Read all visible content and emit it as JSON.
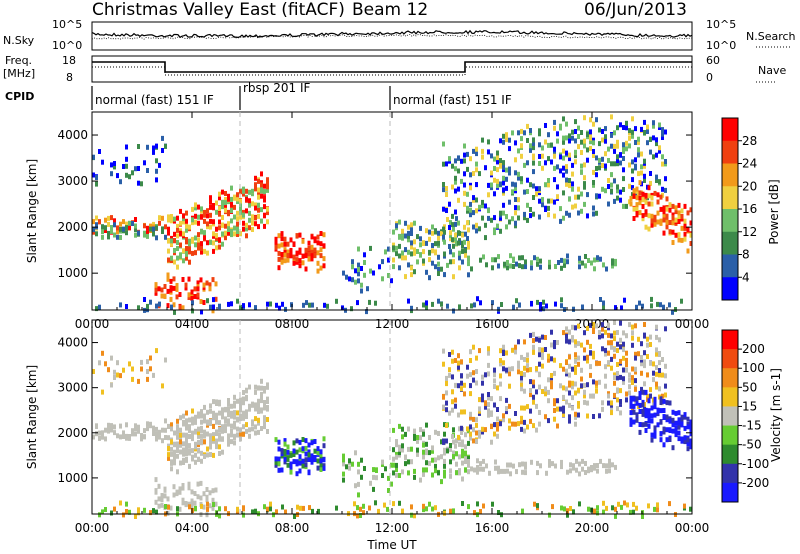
{
  "header": {
    "title": "Christmas Valley East (fitACF)",
    "beam": "Beam 12",
    "date": "06/Jun/2013"
  },
  "top_panels": {
    "nsky_label": "N.Sky",
    "nsky_ticks": [
      "10^5",
      "10^0"
    ],
    "nsearch_label": "N.Search",
    "nsearch_ticks": [
      "10^5",
      "10^0"
    ],
    "freq_label_1": "Freq.",
    "freq_label_2": "[MHz]",
    "freq_ticks": [
      "18",
      "8"
    ],
    "nave_label": "Nave",
    "nave_ticks": [
      "60",
      "0"
    ],
    "cpid_label": "CPID",
    "cpid_segments": [
      "normal (fast) 151 IF",
      "rbsp 201 IF",
      "normal (fast) 151 IF"
    ]
  },
  "colors": {
    "power": [
      "#0000ff",
      "#2a5fa8",
      "#3c8a4a",
      "#6fbf6a",
      "#f0d040",
      "#f29a1a",
      "#f04010",
      "#ff0000"
    ],
    "velocity": [
      "#1a1aff",
      "#3333aa",
      "#2e8b2e",
      "#66cc33",
      "#c0c0b8",
      "#f0c020",
      "#f08c1a",
      "#f04b10",
      "#ff0000"
    ],
    "ground_scatter": "#c0c0b8"
  },
  "chart_data": [
    {
      "type": "heatmap",
      "quantity": "Power",
      "ylabel": "Slant Range [km]",
      "yticks": [
        1000,
        2000,
        3000,
        4000
      ],
      "ylim": [
        200,
        4500
      ],
      "xticks": [
        "00:00",
        "04:00",
        "08:00",
        "12:00",
        "16:00",
        "20:00",
        "00:00"
      ],
      "xlim_hours": [
        0,
        24
      ],
      "colorbar_label": "Power [dB]",
      "colorbar_ticks": [
        "28",
        "24",
        "20",
        "16",
        "12",
        "8",
        "4"
      ]
    },
    {
      "type": "heatmap",
      "quantity": "Velocity",
      "ylabel": "Slant Range [km]",
      "yticks": [
        1000,
        2000,
        3000,
        4000
      ],
      "ylim": [
        200,
        4500
      ],
      "xticks": [
        "00:00",
        "04:00",
        "08:00",
        "12:00",
        "16:00",
        "20:00",
        "00:00"
      ],
      "xlabel": "Time UT",
      "xlim_hours": [
        0,
        24
      ],
      "colorbar_label": "Velocity [m s-1]",
      "colorbar_ticks": [
        "200",
        "100",
        "50",
        "15",
        "-15",
        "-50",
        "-100",
        "-200"
      ]
    }
  ]
}
